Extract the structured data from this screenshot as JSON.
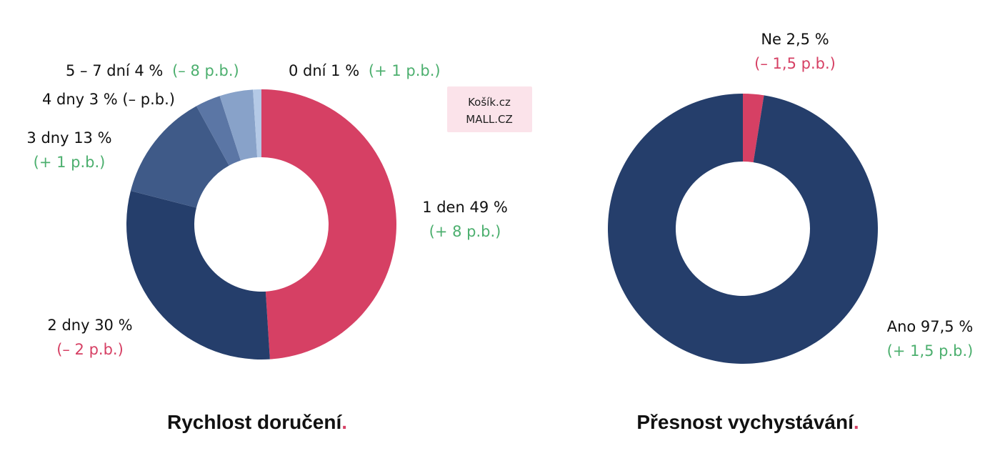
{
  "colors": {
    "positive": "#4caf6e",
    "negative": "#d64064",
    "text": "#111111",
    "title_dot": "#d64064",
    "badge_bg": "#fbe3ea"
  },
  "badge": {
    "lines": [
      "Košík.cz",
      "MALL.CZ"
    ]
  },
  "chart_data": [
    {
      "type": "pie",
      "donut": true,
      "title": "Rychlost doručení",
      "title_dot": ".",
      "slices": [
        {
          "label": "1 den 49 %",
          "value": 49,
          "change": "(+ 8 p.b.)",
          "change_type": "positive",
          "color": "#d64064"
        },
        {
          "label": "2 dny 30 %",
          "value": 30,
          "change": "(– 2 p.b.)",
          "change_type": "negative",
          "color": "#253e6b"
        },
        {
          "label": "3 dny 13 %",
          "value": 13,
          "change": "(+ 1 p.b.)",
          "change_type": "positive",
          "color": "#3f5a88"
        },
        {
          "label": "4 dny 3 % (– p.b.)",
          "value": 3,
          "change": "",
          "change_type": "neutral",
          "color": "#5b76a5"
        },
        {
          "label": "5 – 7 dní 4 %",
          "value": 4,
          "change": "(– 8 p.b.)",
          "change_type": "positive",
          "color": "#88a2c9"
        },
        {
          "label": "0 dní 1 %",
          "value": 1,
          "change": "(+ 1 p.b.)",
          "change_type": "positive",
          "color": "#b4c9e6"
        }
      ]
    },
    {
      "type": "pie",
      "donut": true,
      "title": "Přesnost vychystávání",
      "title_dot": ".",
      "slices": [
        {
          "label": "Ne 2,5 %",
          "value": 2.5,
          "change": "(– 1,5 p.b.)",
          "change_type": "negative",
          "color": "#d64064"
        },
        {
          "label": "Ano 97,5 %",
          "value": 97.5,
          "change": "(+ 1,5 p.b.)",
          "change_type": "positive",
          "color": "#253e6b"
        }
      ]
    }
  ]
}
